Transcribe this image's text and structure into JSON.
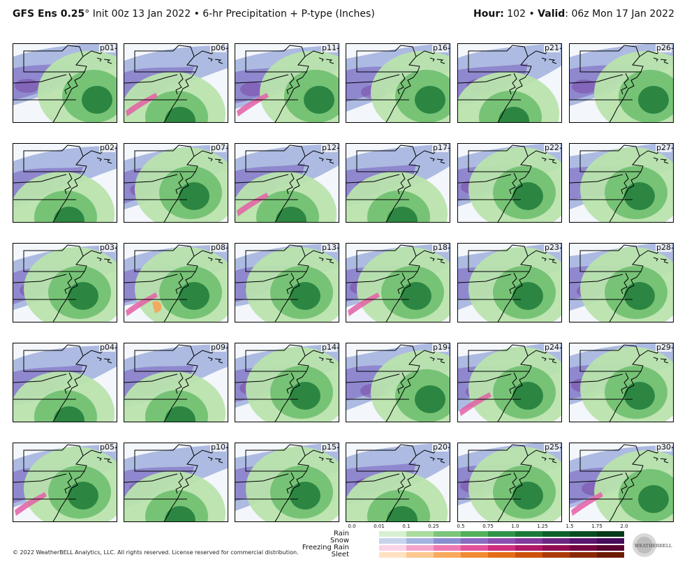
{
  "header": {
    "model": "GFS Ens 0.25",
    "degree": "°",
    "init_text": " Init 00z 13 Jan 2022",
    "bullet": "•",
    "product": " 6-hr Precipitation + P-type (Inches)",
    "hour_label": "Hour:",
    "hour_value": " 102 ",
    "valid_label": "Valid",
    "valid_value": ": 06z Mon 17 Jan 2022"
  },
  "panels": [
    {
      "label": "p01",
      "max": "green-east"
    },
    {
      "label": "p06",
      "max": "green-south"
    },
    {
      "label": "p11",
      "max": "green-east"
    },
    {
      "label": "p16",
      "max": "green-east"
    },
    {
      "label": "p21",
      "max": "green-south"
    },
    {
      "label": "p26",
      "max": "green-east"
    },
    {
      "label": "p02",
      "max": "green-south"
    },
    {
      "label": "p07",
      "max": "green-center"
    },
    {
      "label": "p12",
      "max": "green-south"
    },
    {
      "label": "p17",
      "max": "green-south"
    },
    {
      "label": "p22",
      "max": "green-center"
    },
    {
      "label": "p27",
      "max": "green-center"
    },
    {
      "label": "p03",
      "max": "green-center"
    },
    {
      "label": "p08",
      "max": "green-center"
    },
    {
      "label": "p13",
      "max": "green-center"
    },
    {
      "label": "p18",
      "max": "green-center"
    },
    {
      "label": "p23",
      "max": "green-center"
    },
    {
      "label": "p28",
      "max": "green-center"
    },
    {
      "label": "p04",
      "max": "green-south"
    },
    {
      "label": "p09",
      "max": "green-south"
    },
    {
      "label": "p14",
      "max": "green-center"
    },
    {
      "label": "p19",
      "max": "green-east"
    },
    {
      "label": "p24",
      "max": "green-center"
    },
    {
      "label": "p29",
      "max": "green-center"
    },
    {
      "label": "p05",
      "max": "green-center"
    },
    {
      "label": "p10",
      "max": "green-south"
    },
    {
      "label": "p15",
      "max": "green-center"
    },
    {
      "label": "p20",
      "max": "green-south"
    },
    {
      "label": "p25",
      "max": "green-center"
    },
    {
      "label": "p30",
      "max": "green-east"
    }
  ],
  "legend": {
    "ticks": [
      "0.0",
      "0.01",
      "0.1",
      "0.25",
      "0.5",
      "0.75",
      "1.0",
      "1.25",
      "1.5",
      "1.75",
      "2.0"
    ],
    "rows": [
      {
        "name": "Rain",
        "colors": [
          "#ffffff",
          "#d6efd0",
          "#a9dc9e",
          "#7cc67b",
          "#52b05b",
          "#2f9447",
          "#1b7a37",
          "#0f612b",
          "#084d22",
          "#053a19"
        ]
      },
      {
        "name": "Snow",
        "colors": [
          "#ffffff",
          "#c6d3ec",
          "#a3b3df",
          "#8a8fd0",
          "#8a6cc0",
          "#8c4fb0",
          "#833a9c",
          "#6e2683",
          "#5a1770",
          "#470d5c"
        ]
      },
      {
        "name": "Freezing Rain",
        "colors": [
          "#ffffff",
          "#fbd3e6",
          "#f4a4cb",
          "#ee78b2",
          "#e4519a",
          "#cf2e7f",
          "#b11867",
          "#920c52",
          "#740540",
          "#59022f"
        ]
      },
      {
        "name": "Sleet",
        "colors": [
          "#ffffff",
          "#ffe2c2",
          "#fcc88f",
          "#f8aa5d",
          "#f18b33",
          "#e46d1a",
          "#cc520c",
          "#ab3b06",
          "#8a2803",
          "#6c1a01"
        ]
      }
    ]
  },
  "footer": "© 2022 WeatherBELL Analytics, LLC. All rights reserved. License reserved for commercial distribution.",
  "logo_text": "WEATHERBELL",
  "colors": {
    "rain_light": "#b9e3ad",
    "rain_mid": "#6fbf70",
    "rain_dark": "#1e7b3a",
    "snow_light": "#a9b7e0",
    "snow_mid": "#8a7fca",
    "snow_dark": "#7a4aa8",
    "frz": "#e35fa6",
    "sleet": "#f4a65c",
    "land_bg": "#f3f6fb"
  }
}
